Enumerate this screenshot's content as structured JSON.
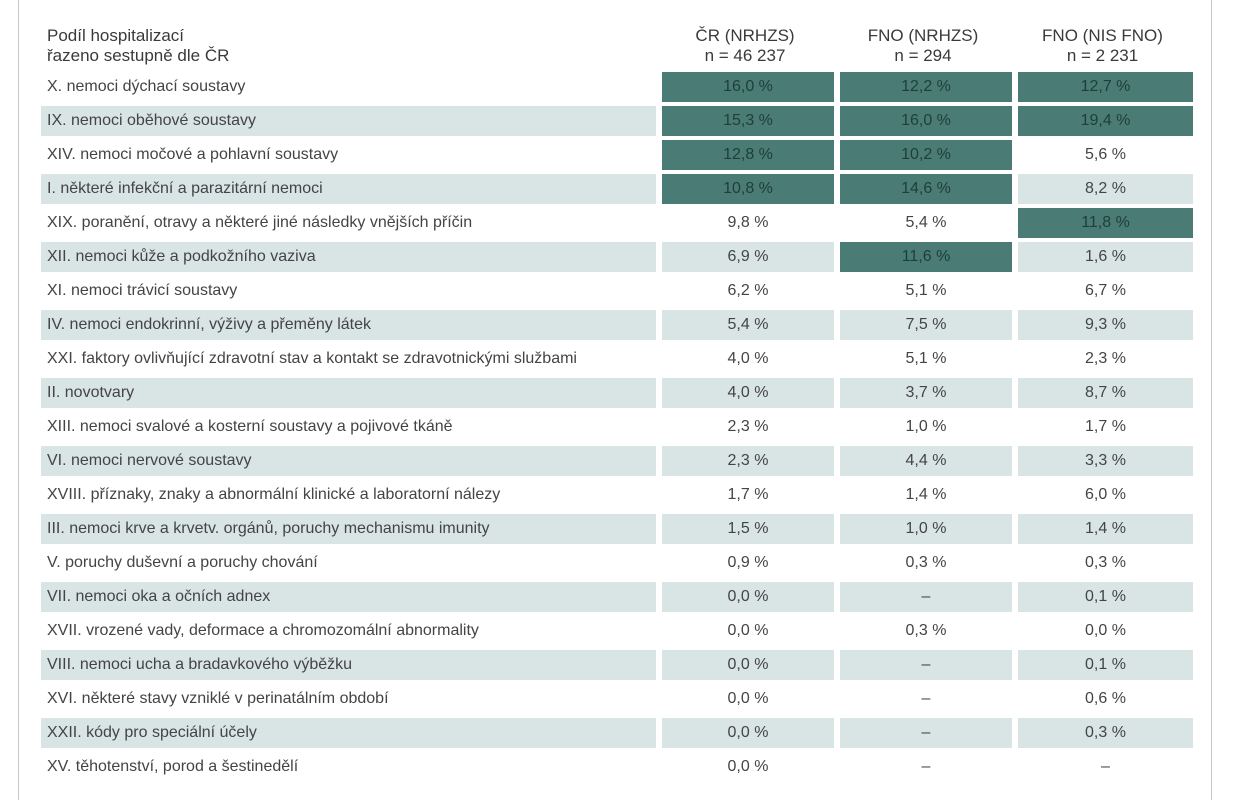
{
  "chart_data": {
    "type": "table",
    "header": {
      "label_line1": "Podíl hospitalizací",
      "label_line2": "řazeno sestupně dle ČR",
      "columns": [
        {
          "name": "ČR (NRHZS)",
          "n": "n = 46 237"
        },
        {
          "name": "FNO (NRHZS)",
          "n": "n = 294"
        },
        {
          "name": "FNO (NIS FNO)",
          "n": "n = 2 231"
        }
      ]
    },
    "highlight_color": "#4a7b75",
    "stripe_color": "#d8e5e4",
    "rows": [
      {
        "label": "X. nemoci dýchací soustavy",
        "values": [
          "16,0 %",
          "12,2 %",
          "12,7 %"
        ],
        "highlight": [
          true,
          true,
          true
        ]
      },
      {
        "label": "IX. nemoci oběhové soustavy",
        "values": [
          "15,3 %",
          "16,0 %",
          "19,4 %"
        ],
        "highlight": [
          true,
          true,
          true
        ]
      },
      {
        "label": "XIV. nemoci močové a pohlavní soustavy",
        "values": [
          "12,8 %",
          "10,2 %",
          "5,6 %"
        ],
        "highlight": [
          true,
          true,
          false
        ]
      },
      {
        "label": "I. některé infekční a parazitární nemoci",
        "values": [
          "10,8 %",
          "14,6 %",
          "8,2 %"
        ],
        "highlight": [
          true,
          true,
          false
        ]
      },
      {
        "label": "XIX. poranění, otravy a některé jiné následky vnějších příčin",
        "values": [
          "9,8 %",
          "5,4 %",
          "11,8 %"
        ],
        "highlight": [
          false,
          false,
          true
        ]
      },
      {
        "label": "XII. nemoci kůže a podkožního vaziva",
        "values": [
          "6,9 %",
          "11,6 %",
          "1,6 %"
        ],
        "highlight": [
          false,
          true,
          false
        ]
      },
      {
        "label": "XI. nemoci trávicí soustavy",
        "values": [
          "6,2 %",
          "5,1 %",
          "6,7 %"
        ],
        "highlight": [
          false,
          false,
          false
        ]
      },
      {
        "label": "IV. nemoci endokrinní, výživy a přeměny látek",
        "values": [
          "5,4 %",
          "7,5 %",
          "9,3 %"
        ],
        "highlight": [
          false,
          false,
          false
        ]
      },
      {
        "label": "XXI. faktory ovlivňující zdravotní stav a kontakt se zdravotnickými službami",
        "values": [
          "4,0 %",
          "5,1 %",
          "2,3 %"
        ],
        "highlight": [
          false,
          false,
          false
        ]
      },
      {
        "label": "II. novotvary",
        "values": [
          "4,0 %",
          "3,7 %",
          "8,7 %"
        ],
        "highlight": [
          false,
          false,
          false
        ]
      },
      {
        "label": "XIII. nemoci svalové a kosterní soustavy a pojivové tkáně",
        "values": [
          "2,3 %",
          "1,0 %",
          "1,7 %"
        ],
        "highlight": [
          false,
          false,
          false
        ]
      },
      {
        "label": "VI. nemoci nervové soustavy",
        "values": [
          "2,3 %",
          "4,4 %",
          "3,3 %"
        ],
        "highlight": [
          false,
          false,
          false
        ]
      },
      {
        "label": "XVIII. příznaky, znaky a abnormální klinické a laboratorní nálezy",
        "values": [
          "1,7 %",
          "1,4 %",
          "6,0 %"
        ],
        "highlight": [
          false,
          false,
          false
        ]
      },
      {
        "label": "III. nemoci krve a krvetv. orgánů, poruchy mechanismu imunity",
        "values": [
          "1,5 %",
          "1,0 %",
          "1,4 %"
        ],
        "highlight": [
          false,
          false,
          false
        ]
      },
      {
        "label": "V. poruchy duševní a poruchy chování",
        "values": [
          "0,9 %",
          "0,3 %",
          "0,3 %"
        ],
        "highlight": [
          false,
          false,
          false
        ]
      },
      {
        "label": "VII. nemoci oka a očních adnex",
        "values": [
          "0,0 %",
          "–",
          "0,1 %"
        ],
        "highlight": [
          false,
          false,
          false
        ]
      },
      {
        "label": "XVII. vrozené vady, deformace a chromozomální abnormality",
        "values": [
          "0,0 %",
          "0,3 %",
          "0,0 %"
        ],
        "highlight": [
          false,
          false,
          false
        ]
      },
      {
        "label": "VIII. nemoci ucha a bradavkového výběžku",
        "values": [
          "0,0 %",
          "–",
          "0,1 %"
        ],
        "highlight": [
          false,
          false,
          false
        ]
      },
      {
        "label": "XVI. některé stavy vzniklé v perinatálním období",
        "values": [
          "0,0 %",
          "–",
          "0,6 %"
        ],
        "highlight": [
          false,
          false,
          false
        ]
      },
      {
        "label": "XXII. kódy pro speciální účely",
        "values": [
          "0,0 %",
          "–",
          "0,3 %"
        ],
        "highlight": [
          false,
          false,
          false
        ]
      },
      {
        "label": "XV. těhotenství, porod a šestinedělí",
        "values": [
          "0,0 %",
          "–",
          "–"
        ],
        "highlight": [
          false,
          false,
          false
        ]
      }
    ]
  }
}
